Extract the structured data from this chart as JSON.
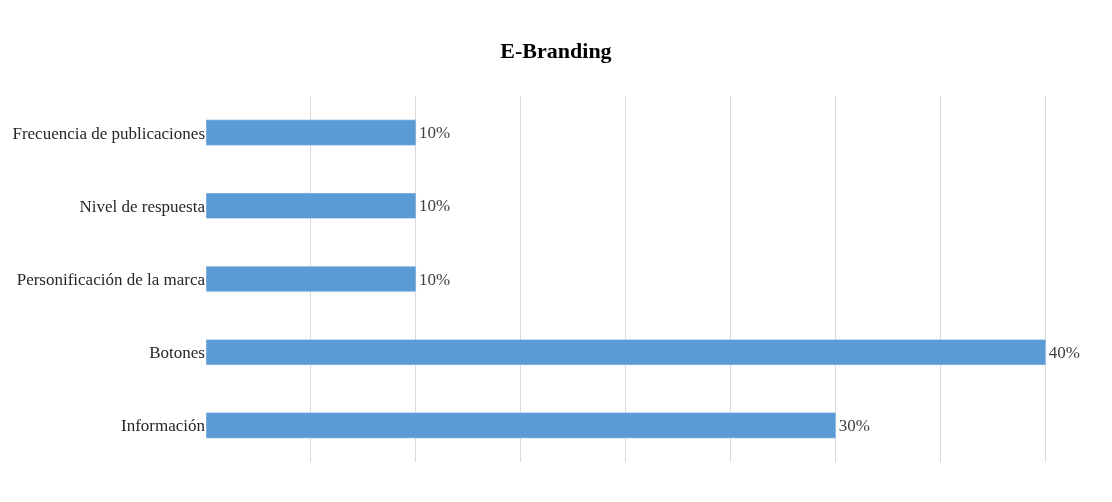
{
  "chart_data": {
    "type": "bar",
    "orientation": "horizontal",
    "title": "E-Branding",
    "categories": [
      "Frecuencia de publicaciones",
      "Nivel de respuesta",
      "Personificación de la marca",
      "Botones",
      "Información"
    ],
    "values": [
      10,
      10,
      10,
      40,
      30
    ],
    "value_labels": [
      "10%",
      "10%",
      "10%",
      "40%",
      "30%"
    ],
    "color": "#5b9bd5",
    "grid": "x",
    "tick_labels": "y",
    "legend": false
  }
}
